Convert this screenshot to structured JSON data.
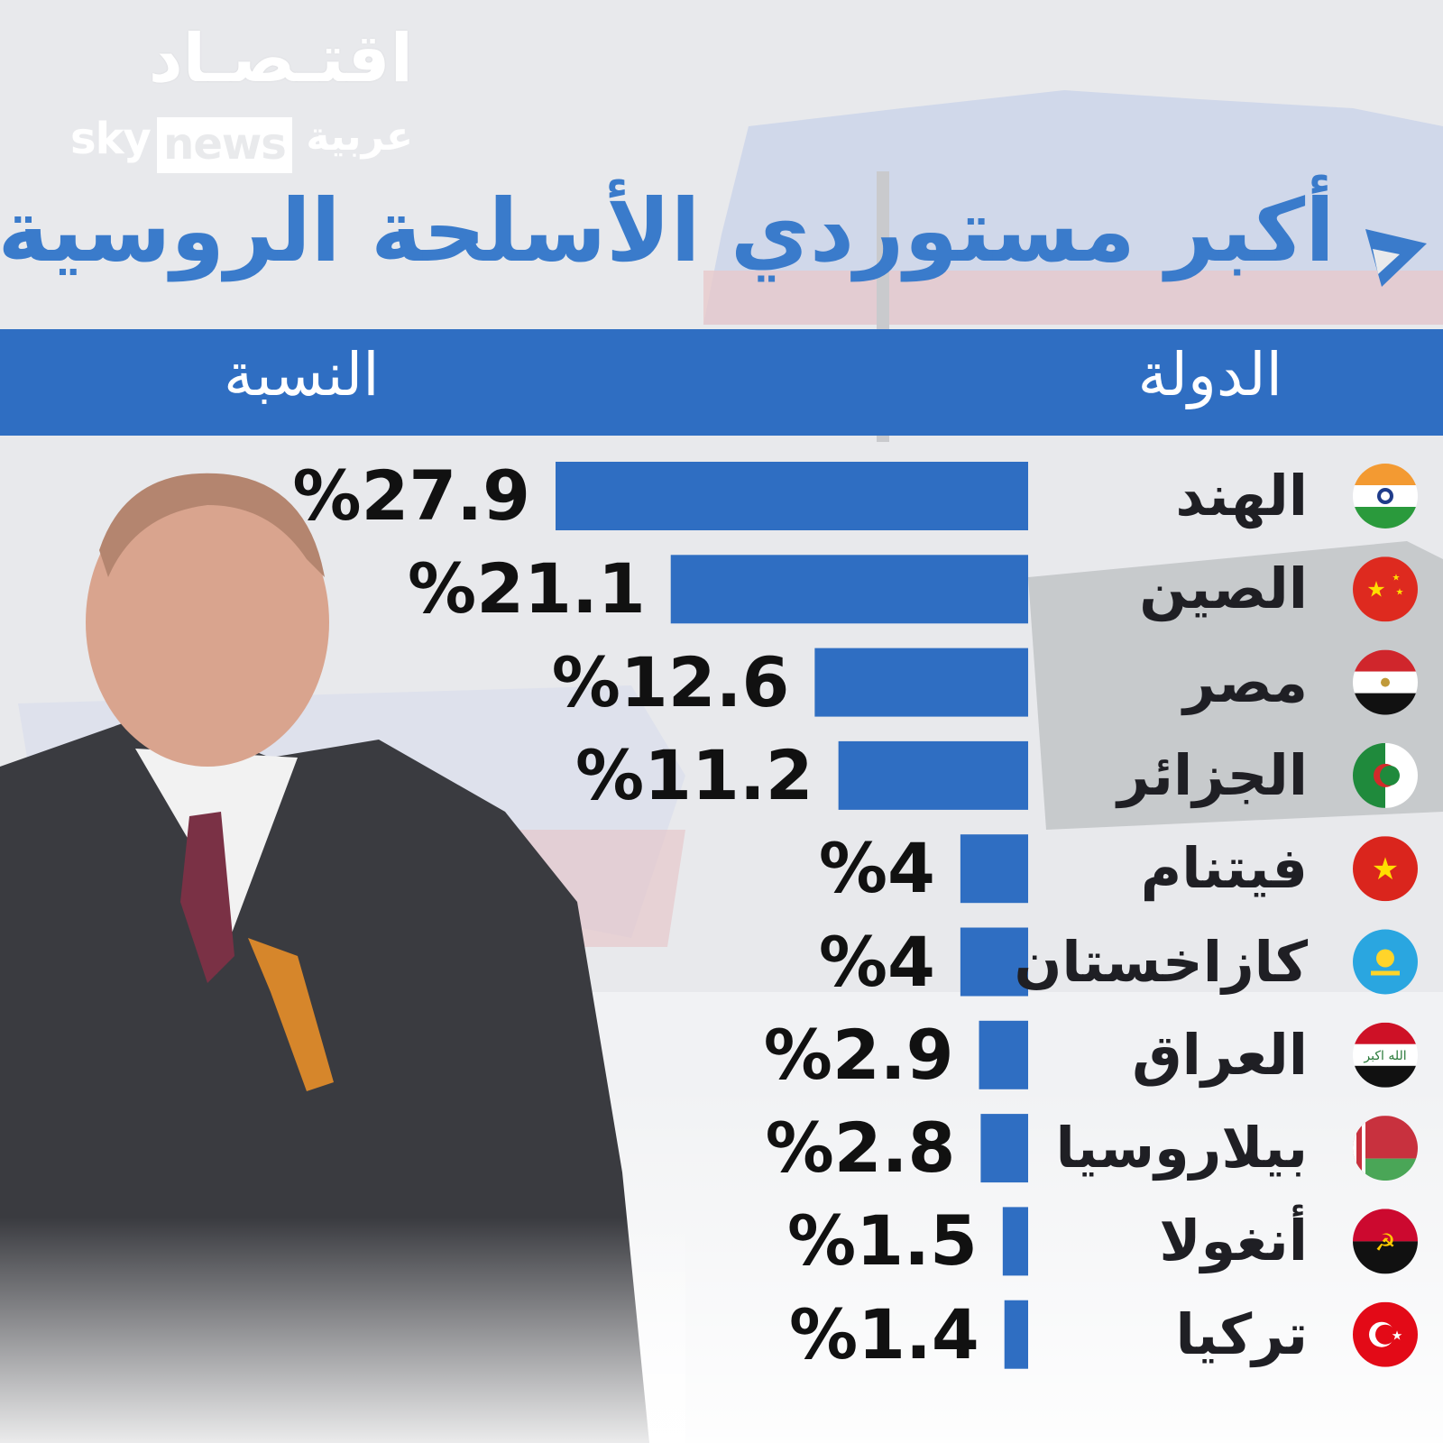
{
  "brand": {
    "logo_arabic": "اقتـصـاد",
    "logo_sky": "sky",
    "logo_news": "news",
    "logo_arabiya": "عربية"
  },
  "title": "أكبر مستوردي الأسلحة الروسية",
  "header": {
    "country_col": "الدولة",
    "percent_col": "النسبة"
  },
  "colors": {
    "accent": "#2f6ec2",
    "title": "#3a7bcb",
    "bar": "#2f6ec2"
  },
  "chart_data": {
    "type": "bar",
    "orientation": "horizontal",
    "categories": [
      "الهند",
      "الصين",
      "مصر",
      "الجزائر",
      "فيتنام",
      "كازاخستان",
      "العراق",
      "بيلاروسيا",
      "أنغولا",
      "تركيا"
    ],
    "values": [
      27.9,
      21.1,
      12.6,
      11.2,
      4,
      4,
      2.9,
      2.8,
      1.5,
      1.4
    ],
    "value_labels": [
      "%27.9",
      "%21.1",
      "%12.6",
      "%11.2",
      "%4",
      "%4",
      "%2.9",
      "%2.8",
      "%1.5",
      "%1.4"
    ],
    "flags": [
      "india-flag-icon",
      "china-flag-icon",
      "egypt-flag-icon",
      "algeria-flag-icon",
      "vietnam-flag-icon",
      "kazakhstan-flag-icon",
      "iraq-flag-icon",
      "belarus-flag-icon",
      "angola-flag-icon",
      "turkey-flag-icon"
    ],
    "xlim": [
      0,
      30
    ],
    "grid": false,
    "legend": "none"
  }
}
